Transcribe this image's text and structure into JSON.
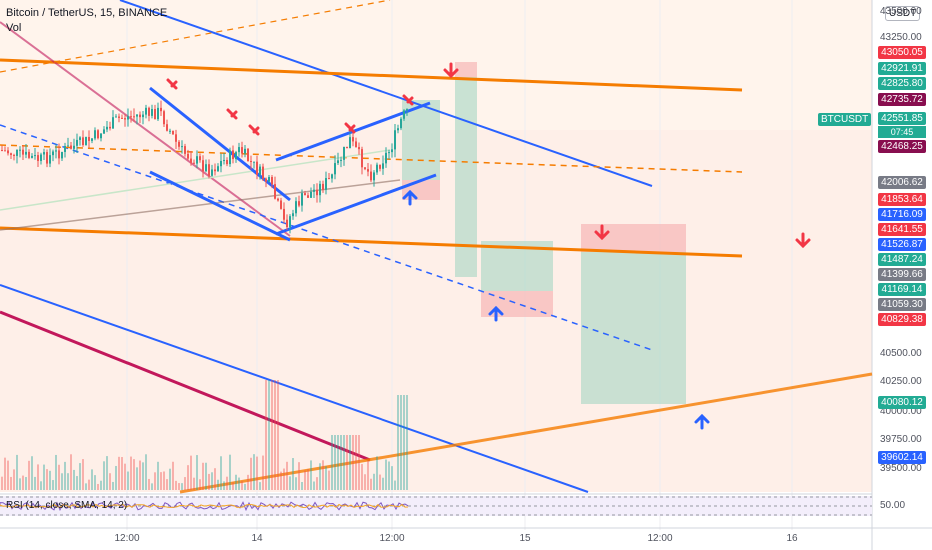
{
  "header": {
    "symbol_line": "Bitcoin / TetherUS, 15, BINANCE",
    "vol_label": "Vol",
    "currency_badge": "USDT",
    "rsi_label": "RSI (14, close, SMA, 14, 2)",
    "rsi_value": "50.00"
  },
  "symbol_badge": {
    "label": "BTCUSDT",
    "countdown": "07:45"
  },
  "chart_data": {
    "type": "candlestick",
    "y_range": [
      39400,
      43500
    ],
    "y_ticks": [
      "43500.00",
      "43250.00",
      "40500.00",
      "40250.00",
      "40000.00",
      "39750.00",
      "39500.00"
    ],
    "x_ticks": [
      "12:00",
      "14",
      "12:00",
      "15",
      "12:00",
      "16"
    ],
    "price_labels": [
      {
        "value": "43050.05",
        "color": "#f23645"
      },
      {
        "value": "42921.91",
        "color": "#22ab94"
      },
      {
        "value": "42825.80",
        "color": "#22ab94"
      },
      {
        "value": "42735.72",
        "color": "#880e4f"
      },
      {
        "value": "42551.85",
        "color": "#22ab94"
      },
      {
        "value": "42468.25",
        "color": "#880e4f"
      },
      {
        "value": "42006.62",
        "color": "#787b86"
      },
      {
        "value": "41853.64",
        "color": "#f23645"
      },
      {
        "value": "41716.09",
        "color": "#2962ff"
      },
      {
        "value": "41641.55",
        "color": "#f23645"
      },
      {
        "value": "41526.87",
        "color": "#2962ff"
      },
      {
        "value": "41487.24",
        "color": "#22ab94"
      },
      {
        "value": "41399.66",
        "color": "#787b86"
      },
      {
        "value": "41169.14",
        "color": "#22ab94"
      },
      {
        "value": "41059.30",
        "color": "#787b86"
      },
      {
        "value": "40829.38",
        "color": "#f23645"
      },
      {
        "value": "40080.12",
        "color": "#22ab94"
      },
      {
        "value": "39602.14",
        "color": "#2962ff"
      }
    ],
    "colors": {
      "up": "#26a69a",
      "down": "#ef5350",
      "trend_blue": "#2962ff",
      "trend_orange": "#f57c00"
    }
  }
}
